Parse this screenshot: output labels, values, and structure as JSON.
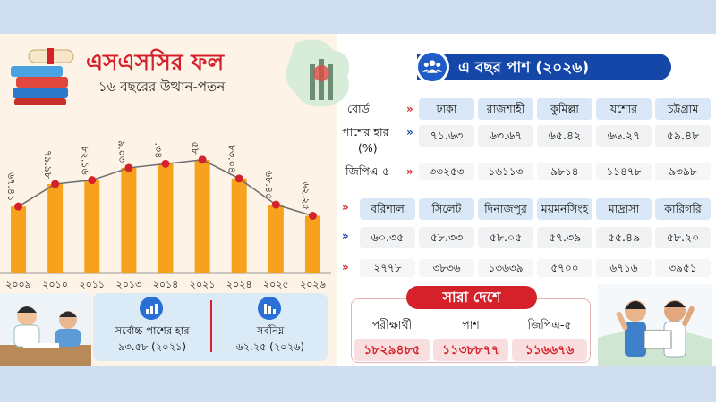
{
  "header": {
    "title": "এসএসসির ফল",
    "subtitle": "১৬ বছরের উত্থান-পতন"
  },
  "chart_data": {
    "type": "bar",
    "categories": [
      "২০০৯",
      "২০১০",
      "২০১১",
      "২০১৩",
      "২০১৪",
      "২০২১",
      "২০২৪",
      "২০২৫",
      "২০২৬"
    ],
    "values": [
      67.41,
      79.98,
      82.16,
      89.03,
      91.34,
      93.58,
      83.04,
      68.45,
      62.25
    ],
    "value_labels": [
      "৬৭.৪১",
      "৭৯.৯৮",
      "৮২.১৬",
      "৮৯.০৩",
      "৯১.৩৪",
      "৯৩.৫৮",
      "৮৩.০৪",
      "৬৮.৪৫",
      "৬২.২৫"
    ],
    "ylim": [
      30,
      100
    ],
    "bar_color": "#f7a21c",
    "line_color": "#6b6b6b",
    "marker_color": "#d5212a",
    "title": "",
    "xlabel": "",
    "ylabel": ""
  },
  "summary": {
    "highest_label": "সর্বোচ্চ পাশের হার",
    "highest_value": "৯৩.৫৮ (২০২১)",
    "lowest_label": "সর্বনিম্ন",
    "lowest_value": "৬২.২৫ (২০২৬)"
  },
  "board_section": {
    "banner": "এ বছর পাশ (২০২৬)",
    "row_labels": {
      "board": "বোর্ড",
      "pass_rate": "পাশের হার",
      "pass_rate_unit": "(%)",
      "gpa5": "জিপিএ-৫"
    },
    "row1": [
      {
        "board": "ঢাকা",
        "pass_rate": "৭১.৬৩",
        "gpa5": "৩৩২৫৩"
      },
      {
        "board": "রাজশাহী",
        "pass_rate": "৬৩.৬৭",
        "gpa5": "১৬১১৩"
      },
      {
        "board": "কুমিল্লা",
        "pass_rate": "৬৫.৪২",
        "gpa5": "৯৮১৪"
      },
      {
        "board": "যশোর",
        "pass_rate": "৬৬.২৭",
        "gpa5": "১১৪৭৮"
      },
      {
        "board": "চট্টগ্রাম",
        "pass_rate": "৫৯.৪৮",
        "gpa5": "৯৩৯৮"
      }
    ],
    "row2": [
      {
        "board": "বরিশাল",
        "pass_rate": "৬০.৩৫",
        "gpa5": "২৭৭৮"
      },
      {
        "board": "সিলেট",
        "pass_rate": "৫৮.৩৩",
        "gpa5": "৩৮৩৬"
      },
      {
        "board": "দিনাজপুর",
        "pass_rate": "৫৮.০৫",
        "gpa5": "১৩৬৩৯"
      },
      {
        "board": "ময়মনসিংহ",
        "pass_rate": "৫৭.৩৯",
        "gpa5": "৫৭০০"
      },
      {
        "board": "মাদ্রাসা",
        "pass_rate": "৫৫.৪৯",
        "gpa5": "৬৭১৬"
      },
      {
        "board": "কারিগরি",
        "pass_rate": "৫৮.২০",
        "gpa5": "৩৯৫১"
      }
    ]
  },
  "national": {
    "title": "সারা দেশে",
    "examinees_label": "পরীক্ষার্থী",
    "examinees_value": "১৮২৯৪৮৫",
    "pass_label": "পাশ",
    "pass_value": "১১৩৮৮৭৭",
    "gpa5_label": "জিপিএ-৫",
    "gpa5_value": "১১৬৬৭৬"
  },
  "colors": {
    "accent_red": "#d5212a",
    "accent_blue": "#1447a8",
    "bar_orange": "#f7a21c"
  }
}
